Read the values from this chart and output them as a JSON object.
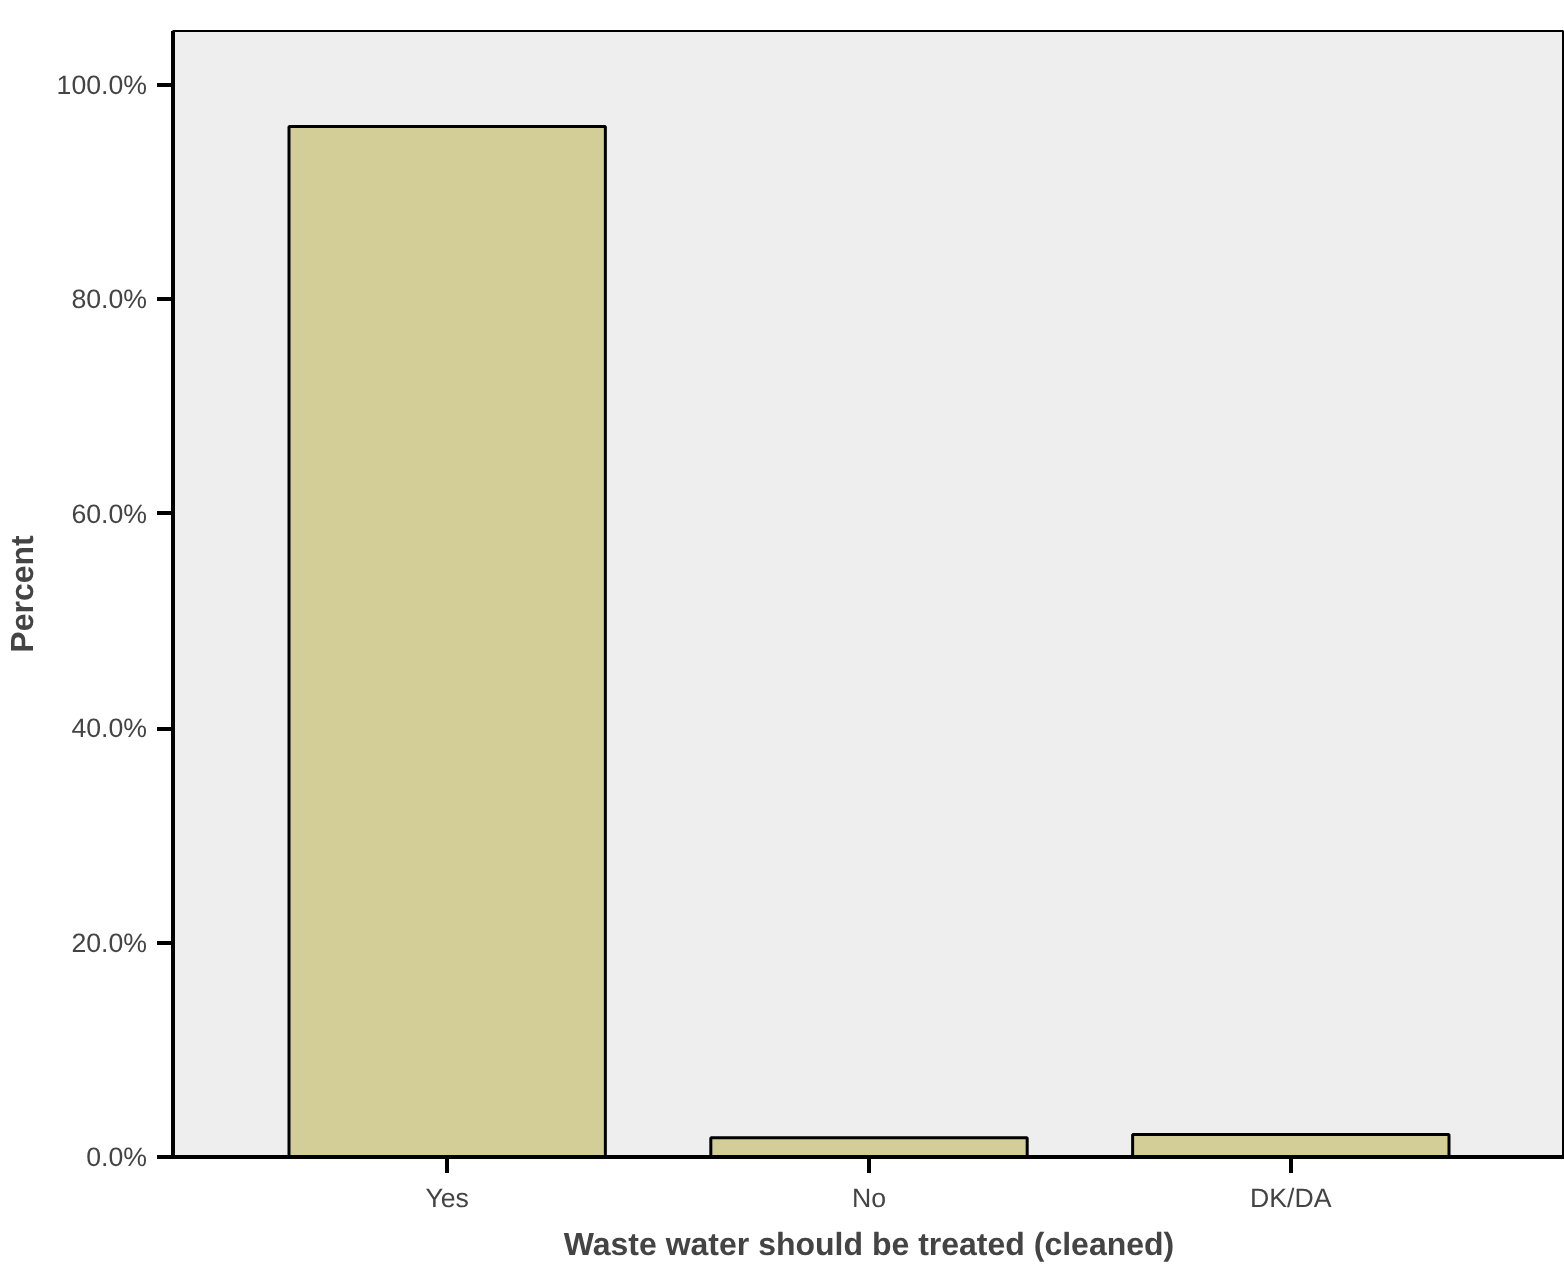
{
  "chart_data": {
    "type": "bar",
    "xlabel": "Waste water should be treated (cleaned)",
    "ylabel": "Percent",
    "categories": [
      "Yes",
      "No",
      "DK/DA"
    ],
    "values": [
      96.1,
      1.8,
      2.1
    ],
    "color": "#d3ce97",
    "ylim": [
      0,
      105
    ],
    "yticks": [
      {
        "value": 0,
        "label": "0.0%"
      },
      {
        "value": 20,
        "label": "20.0%"
      },
      {
        "value": 40,
        "label": "40.0%"
      },
      {
        "value": 60,
        "label": "60.0%"
      },
      {
        "value": 80,
        "label": "80.0%"
      },
      {
        "value": 100,
        "label": "100.0%"
      }
    ],
    "grid": false
  }
}
